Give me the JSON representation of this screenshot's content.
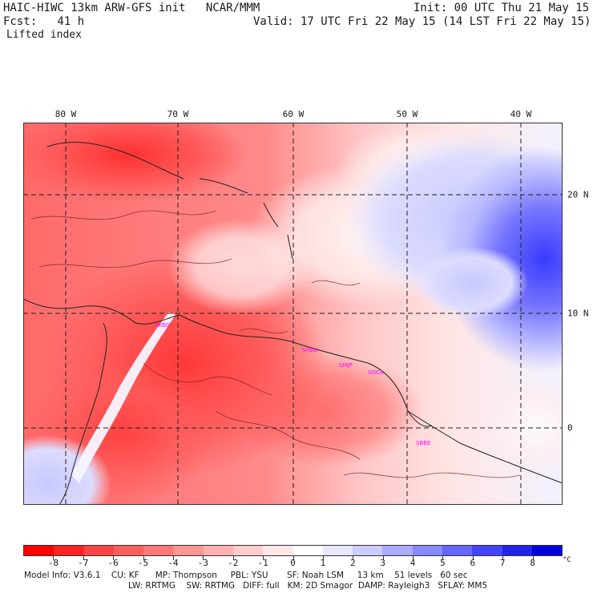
{
  "header": {
    "model_title": "HAIC-HIWC 13km ARW-GFS init   NCAR/MMM",
    "init_time": "Init: 00 UTC Thu 21 May 15",
    "forecast_label": "Fcst:   41 h",
    "valid_time": "Valid: 17 UTC Fri 22 May 15 (14 LST Fri 22 May 15)",
    "field_name": "Lifted index"
  },
  "map": {
    "lon_labels": [
      "80 W",
      "70 W",
      "60 W",
      "50 W",
      "40 W"
    ],
    "lat_labels": [
      "20 N",
      "10 N",
      "0"
    ],
    "stations": [
      "SKBO",
      "SVBU",
      "SMJP",
      "SOCA",
      "SBBE"
    ]
  },
  "colorbar": {
    "ticks": [
      "-8",
      "-7",
      "-6",
      "-5",
      "-4",
      "-3",
      "-2",
      "-1",
      "0",
      "1",
      "2",
      "3",
      "4",
      "5",
      "6",
      "7",
      "8"
    ],
    "unit": "°C",
    "colors": [
      "#ff0000",
      "#ff2222",
      "#ff4444",
      "#ff5e5e",
      "#ff7878",
      "#ff9494",
      "#ffb0b0",
      "#ffcccc",
      "#ffe8e8",
      "#ffffff",
      "#e8e8ff",
      "#ccccff",
      "#aaaaff",
      "#8888ff",
      "#6666ff",
      "#4444ff",
      "#2222ee",
      "#0000dd"
    ]
  },
  "footer": {
    "line1": "Model Info: V3.6.1    CU: KF      MP: Thompson     PBL: YSU       SF: Noah LSM     13 km    51 levels   60 sec",
    "line2": "LW: RRTMG    SW: RRTMG   DIFF: full   KM: 2D Smagor  DAMP: Rayleigh3   SFLAY: MM5"
  }
}
